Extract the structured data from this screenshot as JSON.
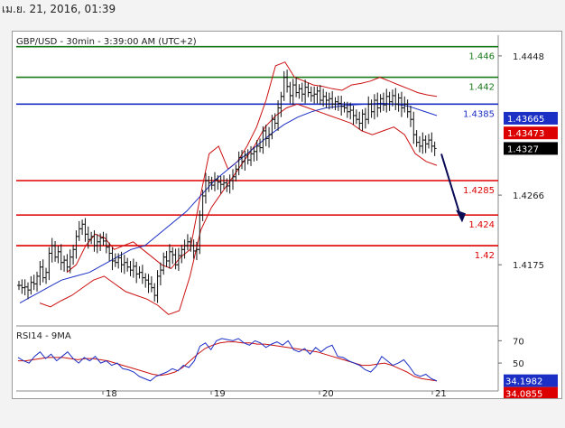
{
  "header": {
    "timestamp": "เม.ย. 21, 2016, 01:39"
  },
  "chart_data": {
    "type": "candlestick",
    "title": "GBP/USD - 30min - 3:39:00 AM (UTC+2)",
    "timeframe": "30min",
    "price_axis": {
      "ticks": [
        1.4448,
        1.4266,
        1.4175
      ],
      "range": [
        1.4095,
        1.4475
      ]
    },
    "x_axis": {
      "ticks": [
        "18",
        "19",
        "20",
        "21"
      ]
    },
    "levels": [
      {
        "label": "1.446",
        "value": 1.446,
        "color": "#1a7a1a"
      },
      {
        "label": "1.442",
        "value": 1.442,
        "color": "#1a7a1a"
      },
      {
        "label": "1.4385",
        "value": 1.4385,
        "color": "#1c2fc4"
      },
      {
        "label": "1.4285",
        "value": 1.4285,
        "color": "#dd0000"
      },
      {
        "label": "1.424",
        "value": 1.424,
        "color": "#dd0000"
      },
      {
        "label": "1.42",
        "value": 1.42,
        "color": "#dd0000"
      }
    ],
    "price_badges": [
      {
        "value": "1.43665",
        "color": "#1c2fc4"
      },
      {
        "value": "1.43473",
        "color": "#dd0000"
      },
      {
        "value": "1.4327",
        "color": "#000000"
      }
    ],
    "close_prices": [
      1.4148,
      1.4145,
      1.4146,
      1.4142,
      1.4152,
      1.415,
      1.416,
      1.4172,
      1.4158,
      1.4165,
      1.419,
      1.42,
      1.4185,
      1.4192,
      1.4178,
      1.4181,
      1.4172,
      1.4185,
      1.4195,
      1.4212,
      1.4222,
      1.4228,
      1.4215,
      1.4208,
      1.4212,
      1.42,
      1.4205,
      1.421,
      1.4206,
      1.4198,
      1.419,
      1.418,
      1.4178,
      1.4184,
      1.4175,
      1.4178,
      1.4172,
      1.4168,
      1.4173,
      1.4163,
      1.4165,
      1.4158,
      1.4155,
      1.415,
      1.4145,
      1.4135,
      1.416,
      1.4168,
      1.4185,
      1.418,
      1.4192,
      1.4188,
      1.4175,
      1.4187,
      1.4195,
      1.42,
      1.4205,
      1.42,
      1.4193,
      1.4195,
      1.424,
      1.4265,
      1.4285,
      1.4282,
      1.4279,
      1.4286,
      1.4283,
      1.428,
      1.4282,
      1.4278,
      1.4285,
      1.429,
      1.43,
      1.4315,
      1.431,
      1.4318,
      1.4312,
      1.432,
      1.4323,
      1.433,
      1.4328,
      1.435,
      1.434,
      1.4345,
      1.4365,
      1.436,
      1.438,
      1.4395,
      1.442,
      1.4408,
      1.4396,
      1.441,
      1.44,
      1.4405,
      1.4398,
      1.4407,
      1.44,
      1.4396,
      1.4398,
      1.4402,
      1.439,
      1.4395,
      1.439,
      1.4392,
      1.4385,
      1.4388,
      1.4386,
      1.4382,
      1.438,
      1.4375,
      1.4377,
      1.437,
      1.4365,
      1.436,
      1.4372,
      1.4365,
      1.4385,
      1.4375,
      1.439,
      1.438,
      1.4392,
      1.4384,
      1.4395,
      1.4388,
      1.4396,
      1.4385,
      1.4393,
      1.438,
      1.4385,
      1.4375,
      1.4365,
      1.4345,
      1.4335,
      1.433,
      1.4338,
      1.4333,
      1.4338,
      1.433,
      1.4327
    ],
    "moving_average": [
      1.4125,
      1.4135,
      1.4145,
      1.4155,
      1.416,
      1.4165,
      1.4175,
      1.4185,
      1.4195,
      1.42,
      1.4215,
      1.423,
      1.4245,
      1.4265,
      1.4285,
      1.43,
      1.4315,
      1.433,
      1.4345,
      1.4358,
      1.4368,
      1.4375,
      1.438,
      1.4382,
      1.4384,
      1.4385,
      1.4386,
      1.4385,
      1.4382,
      1.4376,
      1.437
    ],
    "bollinger_upper": [
      1.4165,
      1.4175,
      1.42,
      1.4215,
      1.421,
      1.4195,
      1.42,
      1.4205,
      1.4195,
      1.4185,
      1.4175,
      1.417,
      1.4185,
      1.4195,
      1.426,
      1.432,
      1.433,
      1.43,
      1.431,
      1.433,
      1.4355,
      1.439,
      1.4435,
      1.444,
      1.442,
      1.4415,
      1.441,
      1.4408,
      1.4405,
      1.4403,
      1.441,
      1.4412,
      1.4415,
      1.442,
      1.4415,
      1.441,
      1.4405,
      1.44,
      1.4397,
      1.4395
    ],
    "bollinger_lower": [
      1.4125,
      1.412,
      1.4128,
      1.4135,
      1.4145,
      1.4155,
      1.416,
      1.415,
      1.414,
      1.4135,
      1.413,
      1.4122,
      1.411,
      1.4115,
      1.416,
      1.422,
      1.425,
      1.427,
      1.429,
      1.431,
      1.433,
      1.4355,
      1.437,
      1.438,
      1.4385,
      1.438,
      1.4375,
      1.437,
      1.4365,
      1.436,
      1.435,
      1.4345,
      1.435,
      1.4355,
      1.4345,
      1.432,
      1.431,
      1.4305
    ],
    "rsi": {
      "label": "RSI14 - 9MA",
      "ticks": [
        70,
        50
      ],
      "range": [
        25,
        80
      ],
      "rsi_value": "34.1982",
      "ma_value": "34.0855",
      "values": [
        55,
        52,
        50,
        56,
        60,
        54,
        58,
        52,
        56,
        60,
        54,
        50,
        55,
        52,
        56,
        50,
        52,
        48,
        50,
        45,
        44,
        42,
        38,
        36,
        34,
        38,
        40,
        42,
        45,
        43,
        48,
        46,
        52,
        65,
        68,
        62,
        70,
        72,
        71,
        70,
        72,
        68,
        66,
        70,
        68,
        64,
        67,
        69,
        66,
        70,
        62,
        60,
        63,
        58,
        64,
        60,
        64,
        66,
        56,
        55,
        52,
        50,
        48,
        44,
        42,
        47,
        56,
        52,
        48,
        50,
        53,
        47,
        40,
        38,
        40,
        36,
        34
      ],
      "ma": [
        52,
        52,
        53,
        54,
        55,
        55,
        55,
        54,
        53,
        54,
        54,
        53,
        52,
        50,
        48,
        46,
        44,
        42,
        40,
        39,
        40,
        42,
        46,
        52,
        58,
        63,
        66,
        68,
        69,
        69,
        68,
        68,
        67,
        67,
        66,
        65,
        64,
        63,
        62,
        61,
        60,
        58,
        56,
        54,
        52,
        50,
        48,
        48,
        49,
        50,
        48,
        45,
        42,
        38,
        36,
        35,
        34
      ]
    }
  }
}
